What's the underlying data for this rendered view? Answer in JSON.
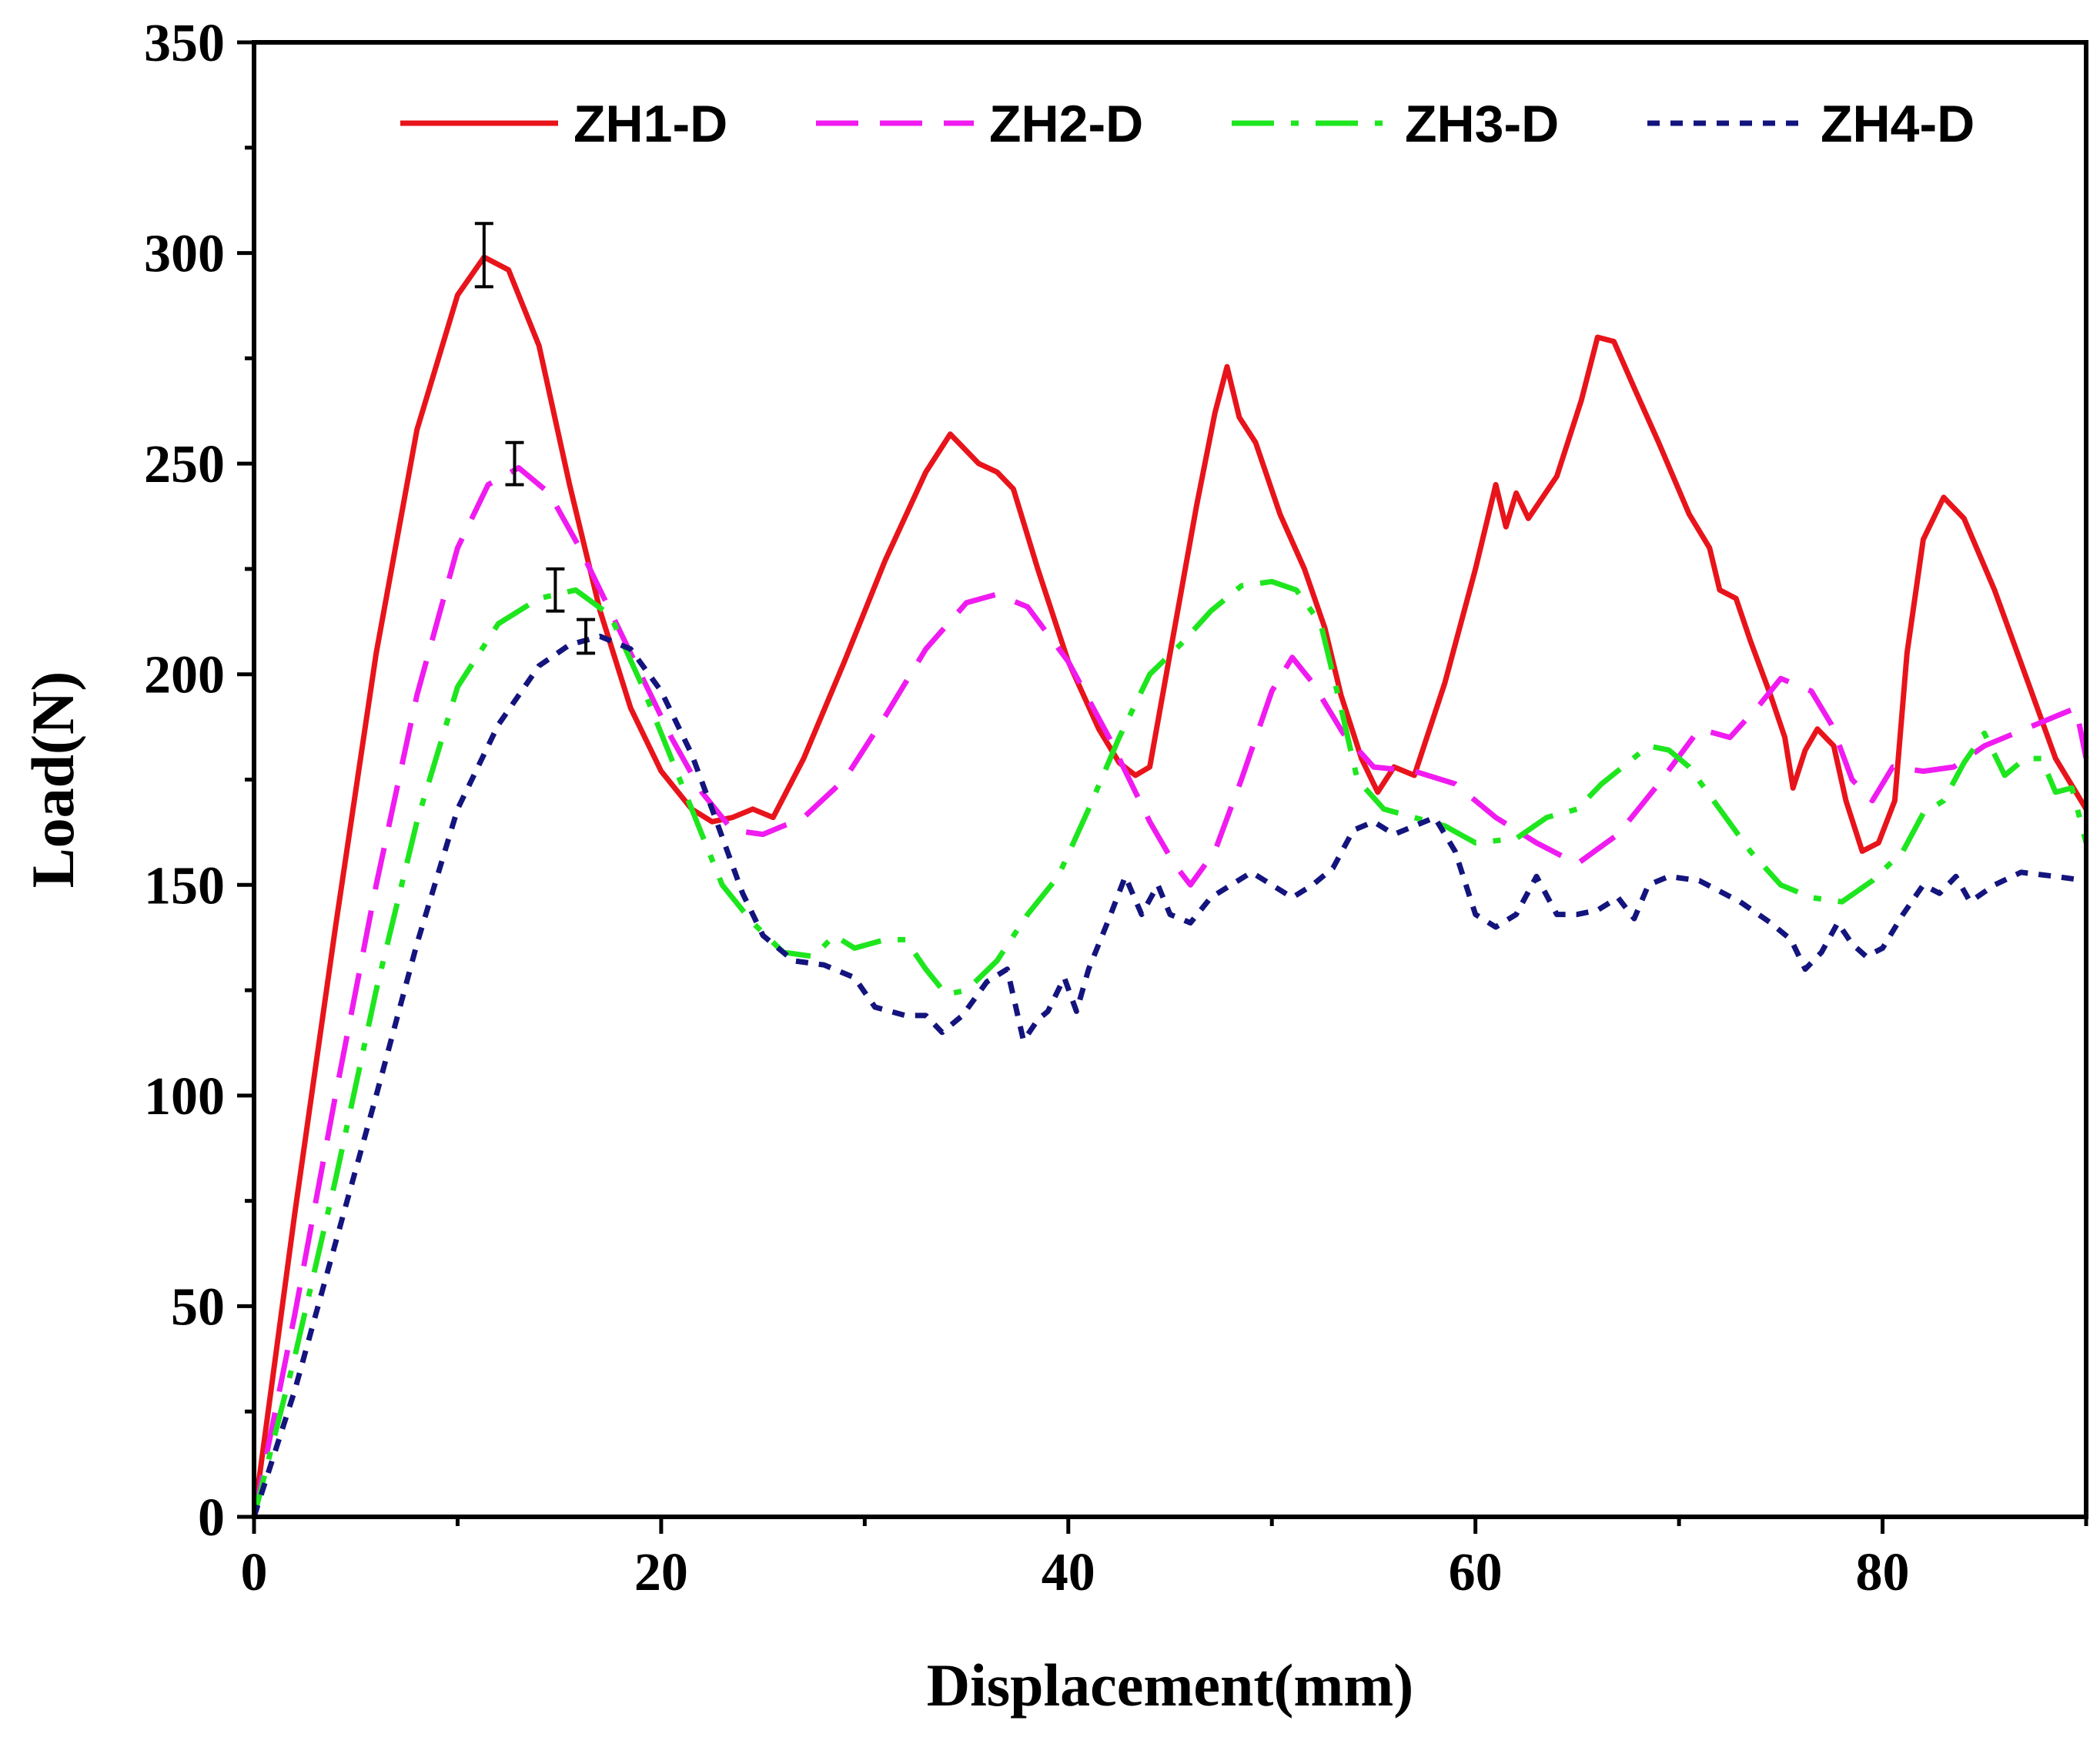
{
  "chart_data": {
    "type": "line",
    "title": "",
    "xlabel": "Displacement(mm)",
    "ylabel": "Load(N)",
    "xlim": [
      0,
      90
    ],
    "ylim": [
      0,
      350
    ],
    "xticks": [
      0,
      20,
      40,
      60,
      80
    ],
    "yticks": [
      0,
      50,
      100,
      150,
      200,
      250,
      300,
      350
    ],
    "legend_position": "top",
    "series": [
      {
        "name": "ZH1-D",
        "color": "#e8141b",
        "dash": "solid",
        "points": [
          [
            0,
            0
          ],
          [
            2,
            72
          ],
          [
            4,
            140
          ],
          [
            6,
            205
          ],
          [
            8,
            258
          ],
          [
            10,
            290
          ],
          [
            11.3,
            299
          ],
          [
            12.5,
            296
          ],
          [
            14,
            278
          ],
          [
            15.5,
            245
          ],
          [
            17,
            215
          ],
          [
            18.5,
            192
          ],
          [
            20,
            177
          ],
          [
            21.5,
            168
          ],
          [
            22.5,
            165
          ],
          [
            23.5,
            166
          ],
          [
            24.5,
            168
          ],
          [
            25.5,
            166
          ],
          [
            27,
            180
          ],
          [
            29,
            203
          ],
          [
            31,
            227
          ],
          [
            33,
            248
          ],
          [
            34.2,
            257
          ],
          [
            35,
            253
          ],
          [
            35.6,
            250
          ],
          [
            36.5,
            248
          ],
          [
            37.3,
            244
          ],
          [
            38.5,
            225
          ],
          [
            40,
            203
          ],
          [
            41.5,
            187
          ],
          [
            42.5,
            179
          ],
          [
            43.3,
            176
          ],
          [
            44,
            178
          ],
          [
            45,
            205
          ],
          [
            46.3,
            240
          ],
          [
            47.2,
            262
          ],
          [
            47.8,
            273
          ],
          [
            48.4,
            261
          ],
          [
            49.2,
            255
          ],
          [
            50.4,
            238
          ],
          [
            51.6,
            225
          ],
          [
            52.6,
            211
          ],
          [
            53.4,
            195
          ],
          [
            54.4,
            180
          ],
          [
            55.2,
            172
          ],
          [
            56,
            178
          ],
          [
            57,
            176
          ],
          [
            58.5,
            198
          ],
          [
            60,
            225
          ],
          [
            61,
            245
          ],
          [
            61.5,
            235
          ],
          [
            62,
            243
          ],
          [
            62.6,
            237
          ],
          [
            64,
            247
          ],
          [
            65.2,
            265
          ],
          [
            66,
            280
          ],
          [
            66.8,
            279
          ],
          [
            67.8,
            268
          ],
          [
            69,
            255
          ],
          [
            70.5,
            238
          ],
          [
            71.5,
            230
          ],
          [
            72,
            220
          ],
          [
            72.8,
            218
          ],
          [
            73.5,
            208
          ],
          [
            74.5,
            195
          ],
          [
            75.2,
            185
          ],
          [
            75.6,
            173
          ],
          [
            76.2,
            182
          ],
          [
            76.8,
            187
          ],
          [
            77.6,
            183
          ],
          [
            78.2,
            170
          ],
          [
            79,
            158
          ],
          [
            79.8,
            160
          ],
          [
            80.6,
            170
          ],
          [
            81.2,
            205
          ],
          [
            82,
            232
          ],
          [
            83,
            242
          ],
          [
            84,
            237
          ],
          [
            85.5,
            220
          ],
          [
            87,
            200
          ],
          [
            88.5,
            180
          ],
          [
            90,
            168
          ]
        ]
      },
      {
        "name": "ZH2-D",
        "color": "#f01bf0",
        "dash": "dash",
        "points": [
          [
            0,
            0
          ],
          [
            2,
            48
          ],
          [
            4,
            100
          ],
          [
            6,
            150
          ],
          [
            8,
            195
          ],
          [
            10,
            230
          ],
          [
            11.5,
            245
          ],
          [
            13,
            249
          ],
          [
            14.5,
            243
          ],
          [
            16,
            230
          ],
          [
            17.5,
            215
          ],
          [
            19,
            200
          ],
          [
            20.5,
            185
          ],
          [
            22,
            172
          ],
          [
            23.5,
            163
          ],
          [
            25,
            162
          ],
          [
            27,
            166
          ],
          [
            29,
            175
          ],
          [
            31,
            190
          ],
          [
            33,
            206
          ],
          [
            35,
            217
          ],
          [
            36.5,
            219
          ],
          [
            38,
            216
          ],
          [
            40,
            203
          ],
          [
            42,
            185
          ],
          [
            44,
            165
          ],
          [
            45.2,
            155
          ],
          [
            46,
            150
          ],
          [
            47.2,
            158
          ],
          [
            48.5,
            175
          ],
          [
            50,
            196
          ],
          [
            51,
            204
          ],
          [
            52,
            198
          ],
          [
            53.5,
            186
          ],
          [
            55,
            178
          ],
          [
            57,
            177
          ],
          [
            59,
            174
          ],
          [
            61,
            166
          ],
          [
            63,
            160
          ],
          [
            65,
            155
          ],
          [
            67,
            162
          ],
          [
            69,
            174
          ],
          [
            71,
            187
          ],
          [
            72.5,
            185
          ],
          [
            74,
            193
          ],
          [
            75,
            199
          ],
          [
            76.5,
            196
          ],
          [
            77.5,
            188
          ],
          [
            78.5,
            175
          ],
          [
            79.5,
            170
          ],
          [
            80.5,
            178
          ],
          [
            82,
            177
          ],
          [
            83.5,
            178
          ],
          [
            85,
            183
          ],
          [
            87,
            187
          ],
          [
            88.5,
            190
          ],
          [
            89.5,
            192
          ],
          [
            90,
            180
          ]
        ]
      },
      {
        "name": "ZH3-D",
        "color": "#1ee61e",
        "dash": "dashdot",
        "points": [
          [
            0,
            0
          ],
          [
            2,
            38
          ],
          [
            4,
            80
          ],
          [
            6,
            125
          ],
          [
            8,
            165
          ],
          [
            10,
            197
          ],
          [
            12,
            212
          ],
          [
            14,
            218
          ],
          [
            15.8,
            220
          ],
          [
            17.5,
            214
          ],
          [
            19,
            198
          ],
          [
            20.5,
            180
          ],
          [
            21.5,
            168
          ],
          [
            23,
            150
          ],
          [
            24.5,
            141
          ],
          [
            26,
            134
          ],
          [
            27.5,
            133
          ],
          [
            28.5,
            138
          ],
          [
            29.5,
            135
          ],
          [
            31,
            137
          ],
          [
            32,
            137
          ],
          [
            33,
            130
          ],
          [
            34,
            124
          ],
          [
            35,
            125
          ],
          [
            36.5,
            132
          ],
          [
            38,
            143
          ],
          [
            39.5,
            152
          ],
          [
            41,
            168
          ],
          [
            42.5,
            185
          ],
          [
            44,
            200
          ],
          [
            45.5,
            207
          ],
          [
            47,
            215
          ],
          [
            48.5,
            221
          ],
          [
            50,
            222
          ],
          [
            51.2,
            220
          ],
          [
            52.4,
            212
          ],
          [
            53.4,
            192
          ],
          [
            54.2,
            175
          ],
          [
            55.5,
            168
          ],
          [
            57,
            166
          ],
          [
            58.5,
            164
          ],
          [
            60,
            160
          ],
          [
            62,
            161
          ],
          [
            63.5,
            166
          ],
          [
            65,
            168
          ],
          [
            66.2,
            174
          ],
          [
            67.5,
            179
          ],
          [
            68.5,
            183
          ],
          [
            69.5,
            182
          ],
          [
            70.5,
            178
          ],
          [
            72,
            168
          ],
          [
            73.5,
            158
          ],
          [
            75,
            150
          ],
          [
            76.5,
            147
          ],
          [
            78,
            146
          ],
          [
            79.5,
            151
          ],
          [
            81,
            158
          ],
          [
            82,
            167
          ],
          [
            83,
            170
          ],
          [
            84,
            179
          ],
          [
            85,
            186
          ],
          [
            86,
            176
          ],
          [
            87,
            180
          ],
          [
            87.8,
            180
          ],
          [
            88.5,
            172
          ],
          [
            89.3,
            173
          ],
          [
            90,
            160
          ]
        ]
      },
      {
        "name": "ZH4-D",
        "color": "#14147e",
        "dash": "dot",
        "points": [
          [
            0,
            0
          ],
          [
            2,
            30
          ],
          [
            4,
            65
          ],
          [
            6,
            100
          ],
          [
            8,
            136
          ],
          [
            10,
            168
          ],
          [
            12,
            188
          ],
          [
            14,
            202
          ],
          [
            15.5,
            207
          ],
          [
            17,
            209
          ],
          [
            18.5,
            206
          ],
          [
            20,
            196
          ],
          [
            21.5,
            181
          ],
          [
            22.5,
            168
          ],
          [
            24,
            148
          ],
          [
            25,
            138
          ],
          [
            26.5,
            132
          ],
          [
            28,
            131
          ],
          [
            29.5,
            128
          ],
          [
            30.5,
            121
          ],
          [
            32,
            119
          ],
          [
            33,
            119
          ],
          [
            33.8,
            115
          ],
          [
            34.8,
            119
          ],
          [
            36,
            127
          ],
          [
            37,
            130
          ],
          [
            37.8,
            113
          ],
          [
            38.5,
            118
          ],
          [
            39,
            120
          ],
          [
            39.8,
            128
          ],
          [
            40.4,
            120
          ],
          [
            41,
            130
          ],
          [
            42,
            142
          ],
          [
            42.8,
            152
          ],
          [
            43.6,
            143
          ],
          [
            44.4,
            150
          ],
          [
            45,
            143
          ],
          [
            46,
            141
          ],
          [
            47,
            147
          ],
          [
            48,
            150
          ],
          [
            49,
            153
          ],
          [
            50,
            150
          ],
          [
            51,
            147
          ],
          [
            52,
            150
          ],
          [
            53,
            154
          ],
          [
            54,
            163
          ],
          [
            55,
            165
          ],
          [
            56,
            162
          ],
          [
            57,
            164
          ],
          [
            58,
            166
          ],
          [
            59,
            158
          ],
          [
            60,
            143
          ],
          [
            61,
            140
          ],
          [
            62,
            143
          ],
          [
            63,
            152
          ],
          [
            64,
            143
          ],
          [
            65,
            143
          ],
          [
            66,
            144
          ],
          [
            67,
            147
          ],
          [
            67.8,
            142
          ],
          [
            68.5,
            150
          ],
          [
            69.5,
            152
          ],
          [
            71,
            151
          ],
          [
            73,
            146
          ],
          [
            74.5,
            141
          ],
          [
            75.5,
            137
          ],
          [
            76.2,
            130
          ],
          [
            77,
            134
          ],
          [
            77.8,
            141
          ],
          [
            78.5,
            136
          ],
          [
            79.2,
            133
          ],
          [
            80,
            135
          ],
          [
            81,
            143
          ],
          [
            82,
            150
          ],
          [
            82.8,
            148
          ],
          [
            83.6,
            152
          ],
          [
            84.3,
            146
          ],
          [
            85.5,
            150
          ],
          [
            86.8,
            153
          ],
          [
            88.5,
            152
          ],
          [
            90,
            151
          ]
        ]
      }
    ],
    "error_bars": [
      {
        "series": "ZH1-D",
        "x": 11.3,
        "y": 299,
        "low": 292,
        "high": 307
      },
      {
        "series": "ZH2-D",
        "x": 12.8,
        "y": 250,
        "low": 245,
        "high": 255
      },
      {
        "series": "ZH3-D",
        "x": 14.8,
        "y": 220,
        "low": 215,
        "high": 225
      },
      {
        "series": "ZH4-D",
        "x": 16.3,
        "y": 209,
        "low": 205,
        "high": 213
      }
    ]
  }
}
